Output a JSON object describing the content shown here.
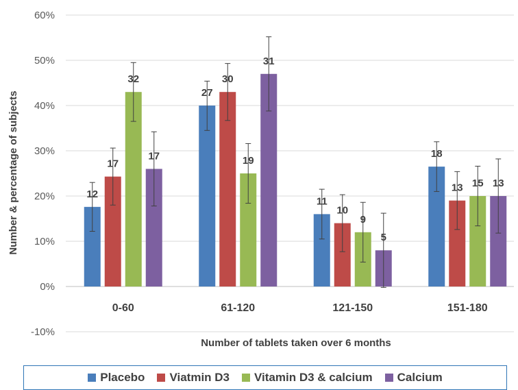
{
  "chart_data": {
    "type": "bar",
    "ylabel": "Number & percentage of subjects",
    "xlabel": "Number of tablets taken over 6 months",
    "ylim": [
      -10,
      60
    ],
    "yticks": [
      "60%",
      "50%",
      "40%",
      "30%",
      "20%",
      "10%",
      "0%",
      "-10%"
    ],
    "ytick_values": [
      60,
      50,
      40,
      30,
      20,
      10,
      0,
      -10
    ],
    "categories": [
      "0-60",
      "61-120",
      "121-150",
      "151-180"
    ],
    "grid": true,
    "legend_position": "bottom",
    "series": [
      {
        "name": "Placebo",
        "color": "#4a7ebb",
        "values": [
          17.6,
          40.0,
          16.0,
          26.5
        ],
        "err_low": [
          12.2,
          34.5,
          10.5,
          21.0
        ],
        "err_high": [
          23.0,
          45.4,
          21.5,
          32.0
        ],
        "labels": [
          "12",
          "27",
          "11",
          "18"
        ]
      },
      {
        "name": "Viatmin D3",
        "color": "#be4b48",
        "values": [
          24.3,
          43.0,
          14.0,
          19.0
        ],
        "err_low": [
          18.0,
          36.7,
          7.7,
          12.6
        ],
        "err_high": [
          30.6,
          49.3,
          20.3,
          25.4
        ],
        "labels": [
          "17",
          "30",
          "10",
          "13"
        ]
      },
      {
        "name": "Vitamin D3 & calcium",
        "color": "#98b954",
        "values": [
          43.0,
          25.0,
          12.0,
          20.0
        ],
        "err_low": [
          36.5,
          18.4,
          5.4,
          13.4
        ],
        "err_high": [
          49.5,
          31.6,
          18.6,
          26.6
        ],
        "labels": [
          "32",
          "19",
          "9",
          "15"
        ]
      },
      {
        "name": "Calcium",
        "color": "#7d60a0",
        "values": [
          26.0,
          47.0,
          8.0,
          20.0
        ],
        "err_low": [
          17.8,
          38.8,
          -0.2,
          11.8
        ],
        "err_high": [
          34.2,
          55.2,
          16.2,
          28.2
        ],
        "labels": [
          "17",
          "31",
          "5",
          "13"
        ]
      }
    ]
  }
}
